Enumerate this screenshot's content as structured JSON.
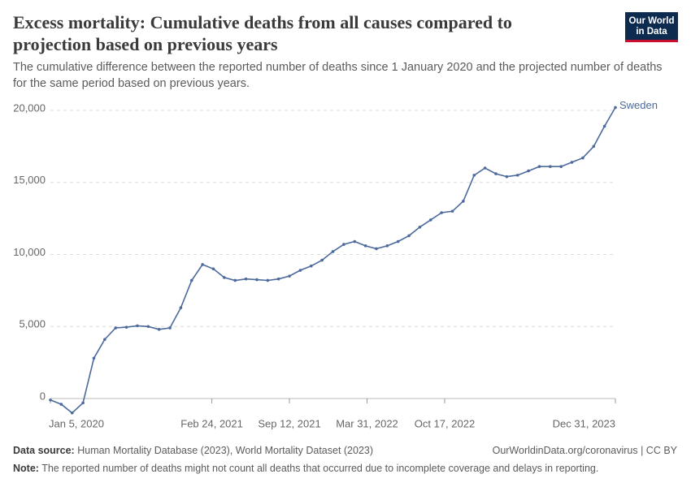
{
  "logo": {
    "line1": "Our World",
    "line2": "in Data"
  },
  "chart_data": {
    "type": "line",
    "title": "Excess mortality: Cumulative deaths from all causes compared to projection based on previous years",
    "subtitle": "The cumulative difference between the reported number of deaths since 1 January 2020 and the projected number of deaths for the same period based on previous years.",
    "x": [
      "2020-01-05",
      "2020-02-02",
      "2020-03-01",
      "2020-03-29",
      "2020-04-26",
      "2020-05-24",
      "2020-06-21",
      "2020-07-19",
      "2020-08-16",
      "2020-09-13",
      "2020-10-11",
      "2020-11-08",
      "2020-12-06",
      "2021-01-03",
      "2021-01-31",
      "2021-02-28",
      "2021-03-28",
      "2021-04-25",
      "2021-05-23",
      "2021-06-20",
      "2021-07-18",
      "2021-08-15",
      "2021-09-12",
      "2021-10-10",
      "2021-11-07",
      "2021-12-05",
      "2022-01-02",
      "2022-01-30",
      "2022-02-27",
      "2022-03-27",
      "2022-04-24",
      "2022-05-22",
      "2022-06-19",
      "2022-07-17",
      "2022-08-14",
      "2022-09-11",
      "2022-10-09",
      "2022-11-06",
      "2022-12-04",
      "2023-01-01",
      "2023-01-29",
      "2023-02-26",
      "2023-03-26",
      "2023-04-23",
      "2023-05-21",
      "2023-06-18",
      "2023-07-16",
      "2023-08-13",
      "2023-09-10",
      "2023-10-08",
      "2023-11-05",
      "2023-12-03",
      "2023-12-31"
    ],
    "series": [
      {
        "name": "Sweden",
        "color": "#4c6a9c",
        "values": [
          -100,
          -400,
          -1000,
          -300,
          2800,
          4100,
          4900,
          4950,
          5050,
          5000,
          4800,
          4900,
          6300,
          8200,
          9300,
          9000,
          8400,
          8200,
          8300,
          8250,
          8200,
          8300,
          8500,
          8900,
          9200,
          9600,
          10200,
          10700,
          10900,
          10600,
          10400,
          10600,
          10900,
          11300,
          11900,
          12400,
          12900,
          13000,
          13700,
          15500,
          16000,
          15600,
          15400,
          15500,
          15800,
          16100,
          16100,
          16100,
          16400,
          16700,
          17500,
          18900,
          20200
        ]
      }
    ],
    "xlim": [
      "2020-01-05",
      "2023-12-31"
    ],
    "xticks": [
      {
        "value": "2020-01-05",
        "label": "Jan 5, 2020"
      },
      {
        "value": "2021-02-24",
        "label": "Feb 24, 2021"
      },
      {
        "value": "2021-09-12",
        "label": "Sep 12, 2021"
      },
      {
        "value": "2022-03-31",
        "label": "Mar 31, 2022"
      },
      {
        "value": "2022-10-17",
        "label": "Oct 17, 2022"
      },
      {
        "value": "2023-12-31",
        "label": "Dec 31, 2023"
      }
    ],
    "ylim": [
      0,
      20000
    ],
    "yticks": [
      0,
      {
        "value": 5000,
        "label": "5,000"
      },
      {
        "value": 10000,
        "label": "10,000"
      },
      {
        "value": 15000,
        "label": "15,000"
      },
      {
        "value": 20000,
        "label": "20,000"
      }
    ],
    "grid": true,
    "source_label": "Data source:",
    "source": "Human Mortality Database (2023), World Mortality Dataset (2023)",
    "credit": "OurWorldinData.org/coronavirus | CC BY",
    "note_label": "Note:",
    "note": "The reported number of deaths might not count all deaths that occurred due to incomplete coverage and delays in reporting."
  }
}
